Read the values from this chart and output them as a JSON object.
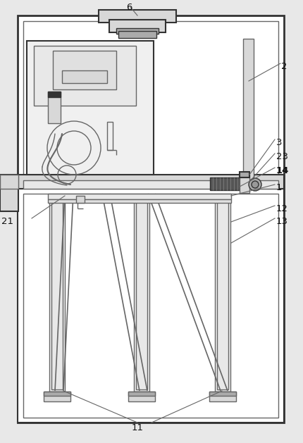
{
  "fig_width": 4.3,
  "fig_height": 6.29,
  "dpi": 100,
  "bg_color": "#e8e8e8",
  "line_color": "#666666",
  "dark_color": "#333333",
  "white": "#ffffff",
  "light_gray": "#d8d8d8",
  "mid_gray": "#aaaaaa"
}
